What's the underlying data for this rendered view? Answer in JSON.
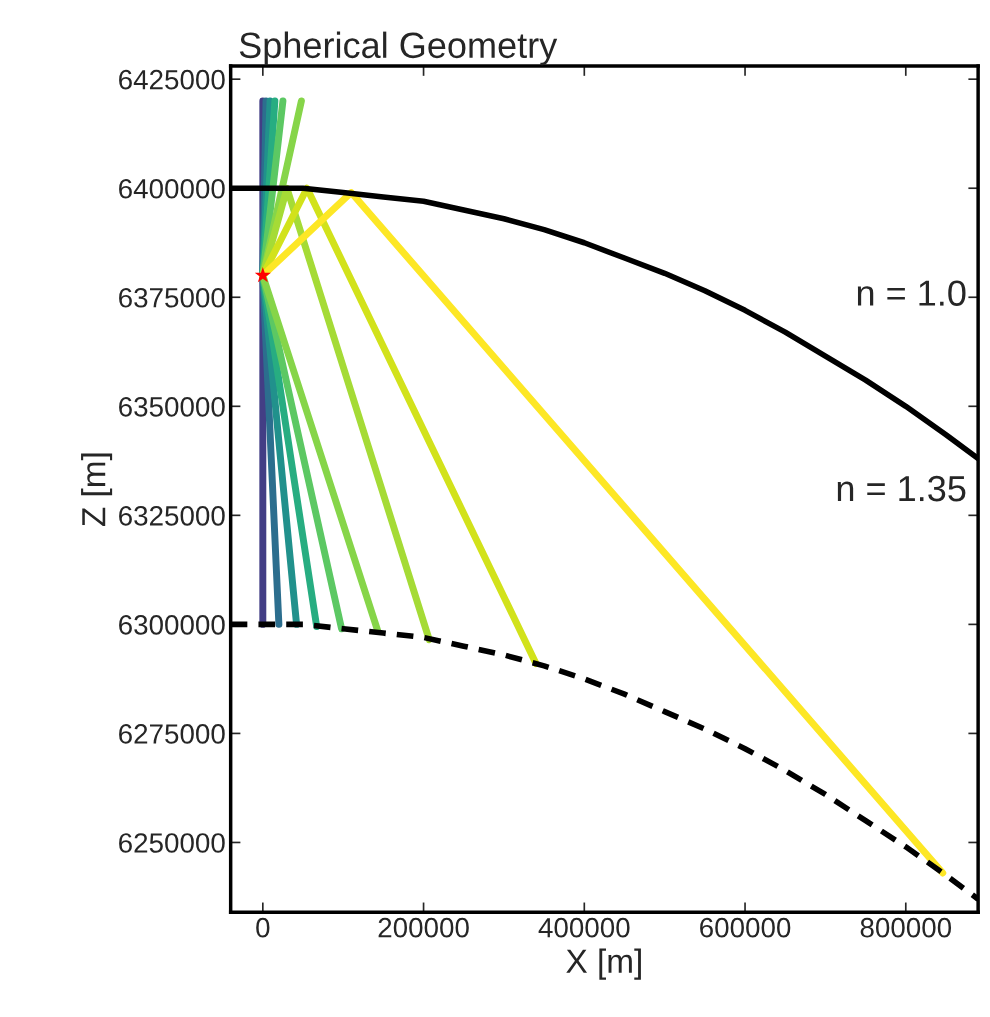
{
  "chart_data": {
    "type": "line",
    "title": "Spherical Geometry",
    "xlabel": "X [m]",
    "ylabel": "Z [m]",
    "xlim": [
      -40000,
      890000
    ],
    "ylim": [
      6234000,
      6428000
    ],
    "xticks": [
      0,
      200000,
      400000,
      600000,
      800000
    ],
    "yticks": [
      6250000,
      6275000,
      6300000,
      6325000,
      6350000,
      6375000,
      6400000,
      6425000
    ],
    "grid": false,
    "legend": false,
    "series": [
      {
        "color": "#000000",
        "line_style": "solid",
        "x": [
          -40000,
          0,
          50000,
          100000,
          150000,
          200000,
          250000,
          300000,
          350000,
          400000,
          450000,
          500000,
          550000,
          600000,
          650000,
          700000,
          750000,
          800000,
          850000,
          890000
        ],
        "values": [
          6400000,
          6400000,
          6400000,
          6399000,
          6398000,
          6397000,
          6395000,
          6393000,
          6390500,
          6387500,
          6384000,
          6380500,
          6376500,
          6372000,
          6367000,
          6361500,
          6356000,
          6350000,
          6343500,
          6338000
        ]
      },
      {
        "color": "#000000",
        "line_style": "dashed",
        "x": [
          -40000,
          0,
          50000,
          100000,
          150000,
          200000,
          250000,
          300000,
          350000,
          400000,
          450000,
          500000,
          550000,
          600000,
          650000,
          700000,
          750000,
          800000,
          850000,
          890000
        ],
        "values": [
          6300000,
          6300000,
          6300000,
          6299000,
          6298000,
          6297000,
          6295000,
          6293000,
          6290500,
          6287500,
          6284000,
          6280000,
          6276000,
          6271500,
          6266500,
          6261000,
          6255000,
          6249000,
          6242500,
          6237000
        ]
      },
      {
        "color": "#433e85",
        "line_style": "solid",
        "x": [
          0,
          0,
          0
        ],
        "values": [
          6420000,
          6380000,
          6300000
        ]
      },
      {
        "color": "#2c6e8e",
        "line_style": "solid",
        "x": [
          4000,
          0,
          20000
        ],
        "values": [
          6420000,
          6380000,
          6300000
        ]
      },
      {
        "color": "#21918c",
        "line_style": "solid",
        "x": [
          9000,
          0,
          42000
        ],
        "values": [
          6420000,
          6380000,
          6300000
        ]
      },
      {
        "color": "#27ad81",
        "line_style": "solid",
        "x": [
          15000,
          0,
          67000
        ],
        "values": [
          6420000,
          6380000,
          6299500
        ]
      },
      {
        "color": "#5cc863",
        "line_style": "solid",
        "x": [
          25000,
          0,
          98000
        ],
        "values": [
          6420000,
          6380000,
          6299000
        ]
      },
      {
        "color": "#86d549",
        "line_style": "solid",
        "x": [
          48000,
          0,
          143000
        ],
        "values": [
          6420000,
          6380000,
          6298500
        ]
      },
      {
        "color": "#a5db36",
        "line_style": "solid",
        "x": [
          0,
          30000,
          207000
        ],
        "values": [
          6380000,
          6400000,
          6296500
        ]
      },
      {
        "color": "#d2e21b",
        "line_style": "solid",
        "x": [
          0,
          55000,
          340000
        ],
        "values": [
          6380000,
          6400000,
          6291000
        ]
      },
      {
        "color": "#fde725",
        "line_style": "solid",
        "x": [
          0,
          110000,
          846000
        ],
        "values": [
          6380000,
          6399000,
          6243000
        ]
      },
      {
        "type": "scatter",
        "color": "#ff0000",
        "marker": "star",
        "x": [
          0
        ],
        "values": [
          6380000
        ]
      }
    ],
    "annotations": [
      "n = 1.0",
      "n = 1.35"
    ]
  }
}
